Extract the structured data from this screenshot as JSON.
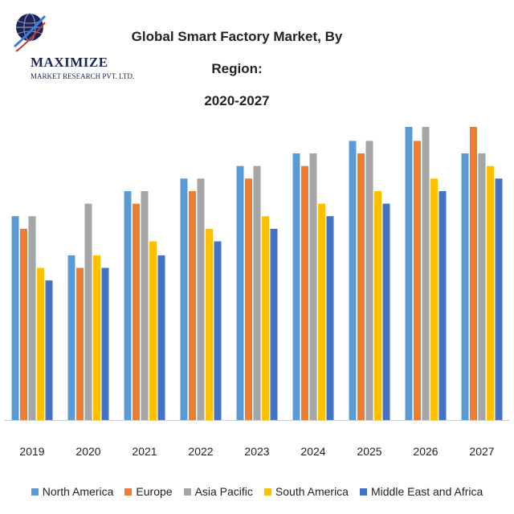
{
  "logo": {
    "name": "MAXIMIZE",
    "subtitle": "MARKET RESEARCH PVT. LTD."
  },
  "chart_data": {
    "type": "bar",
    "title_lines": [
      "Global Smart Factory Market, By Region:",
      "2020-2027"
    ],
    "categories": [
      "2019",
      "2020",
      "2021",
      "2022",
      "2023",
      "2024",
      "2025",
      "2026",
      "2027"
    ],
    "series": [
      {
        "name": "North America",
        "color": "#5b9bd5",
        "values": [
          14.6,
          11.8,
          16.4,
          17.3,
          18.2,
          19.1,
          20.0,
          21.0,
          19.1
        ]
      },
      {
        "name": "Europe",
        "color": "#ed7d31",
        "values": [
          13.7,
          10.9,
          15.5,
          16.4,
          17.3,
          18.2,
          19.1,
          20.0,
          21.0
        ]
      },
      {
        "name": "Asia Pacific",
        "color": "#a5a5a5",
        "values": [
          14.6,
          15.5,
          16.4,
          17.3,
          18.2,
          19.1,
          20.0,
          21.0,
          19.1
        ]
      },
      {
        "name": "South America",
        "color": "#ffc000",
        "values": [
          10.9,
          11.8,
          12.8,
          13.7,
          14.6,
          15.5,
          16.4,
          17.3,
          18.2
        ]
      },
      {
        "name": "Middle East and Africa",
        "color": "#4472c4",
        "values": [
          10.0,
          10.9,
          11.8,
          12.8,
          13.7,
          14.6,
          15.5,
          16.4,
          17.3
        ]
      }
    ],
    "ylim": [
      0,
      21
    ],
    "grid": false,
    "legend_position": "bottom"
  }
}
